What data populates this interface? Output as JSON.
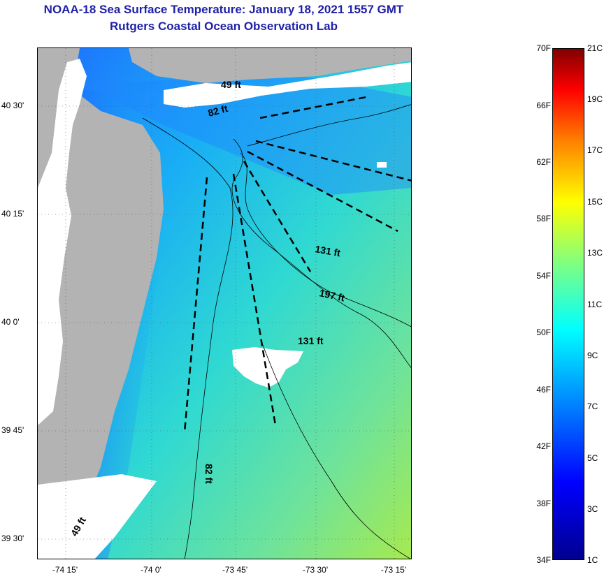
{
  "title": {
    "line1": "NOAA-18 Sea Surface Temperature:  January 18, 2021 1557 GMT",
    "line2": "Rutgers Coastal Ocean Observation Lab"
  },
  "map": {
    "lat_labels": [
      "40 30'",
      "40 15'",
      "40 0'",
      "39 45'",
      "39 30'"
    ],
    "lon_labels": [
      "-74 15'",
      "-74 0'",
      "-73 45'",
      "-73 30'",
      "-73 15'"
    ],
    "depth_labels": [
      "49 ft",
      "82 ft",
      "131 ft",
      "197 ft",
      "131 ft",
      "82 ft",
      "49 ft"
    ],
    "colors": {
      "land": "#b3b3b3",
      "cloud": "#ffffff",
      "cold_water": "#1e6cff",
      "mid_water": "#19c8f0",
      "warm_water": "#8fe860"
    }
  },
  "colorbar": {
    "fahrenheit": [
      "70F",
      "66F",
      "62F",
      "58F",
      "54F",
      "50F",
      "46F",
      "42F",
      "38F",
      "34F"
    ],
    "celsius": [
      "21C",
      "19C",
      "17C",
      "15C",
      "13C",
      "11C",
      "9C",
      "7C",
      "5C",
      "3C",
      "1C"
    ]
  }
}
